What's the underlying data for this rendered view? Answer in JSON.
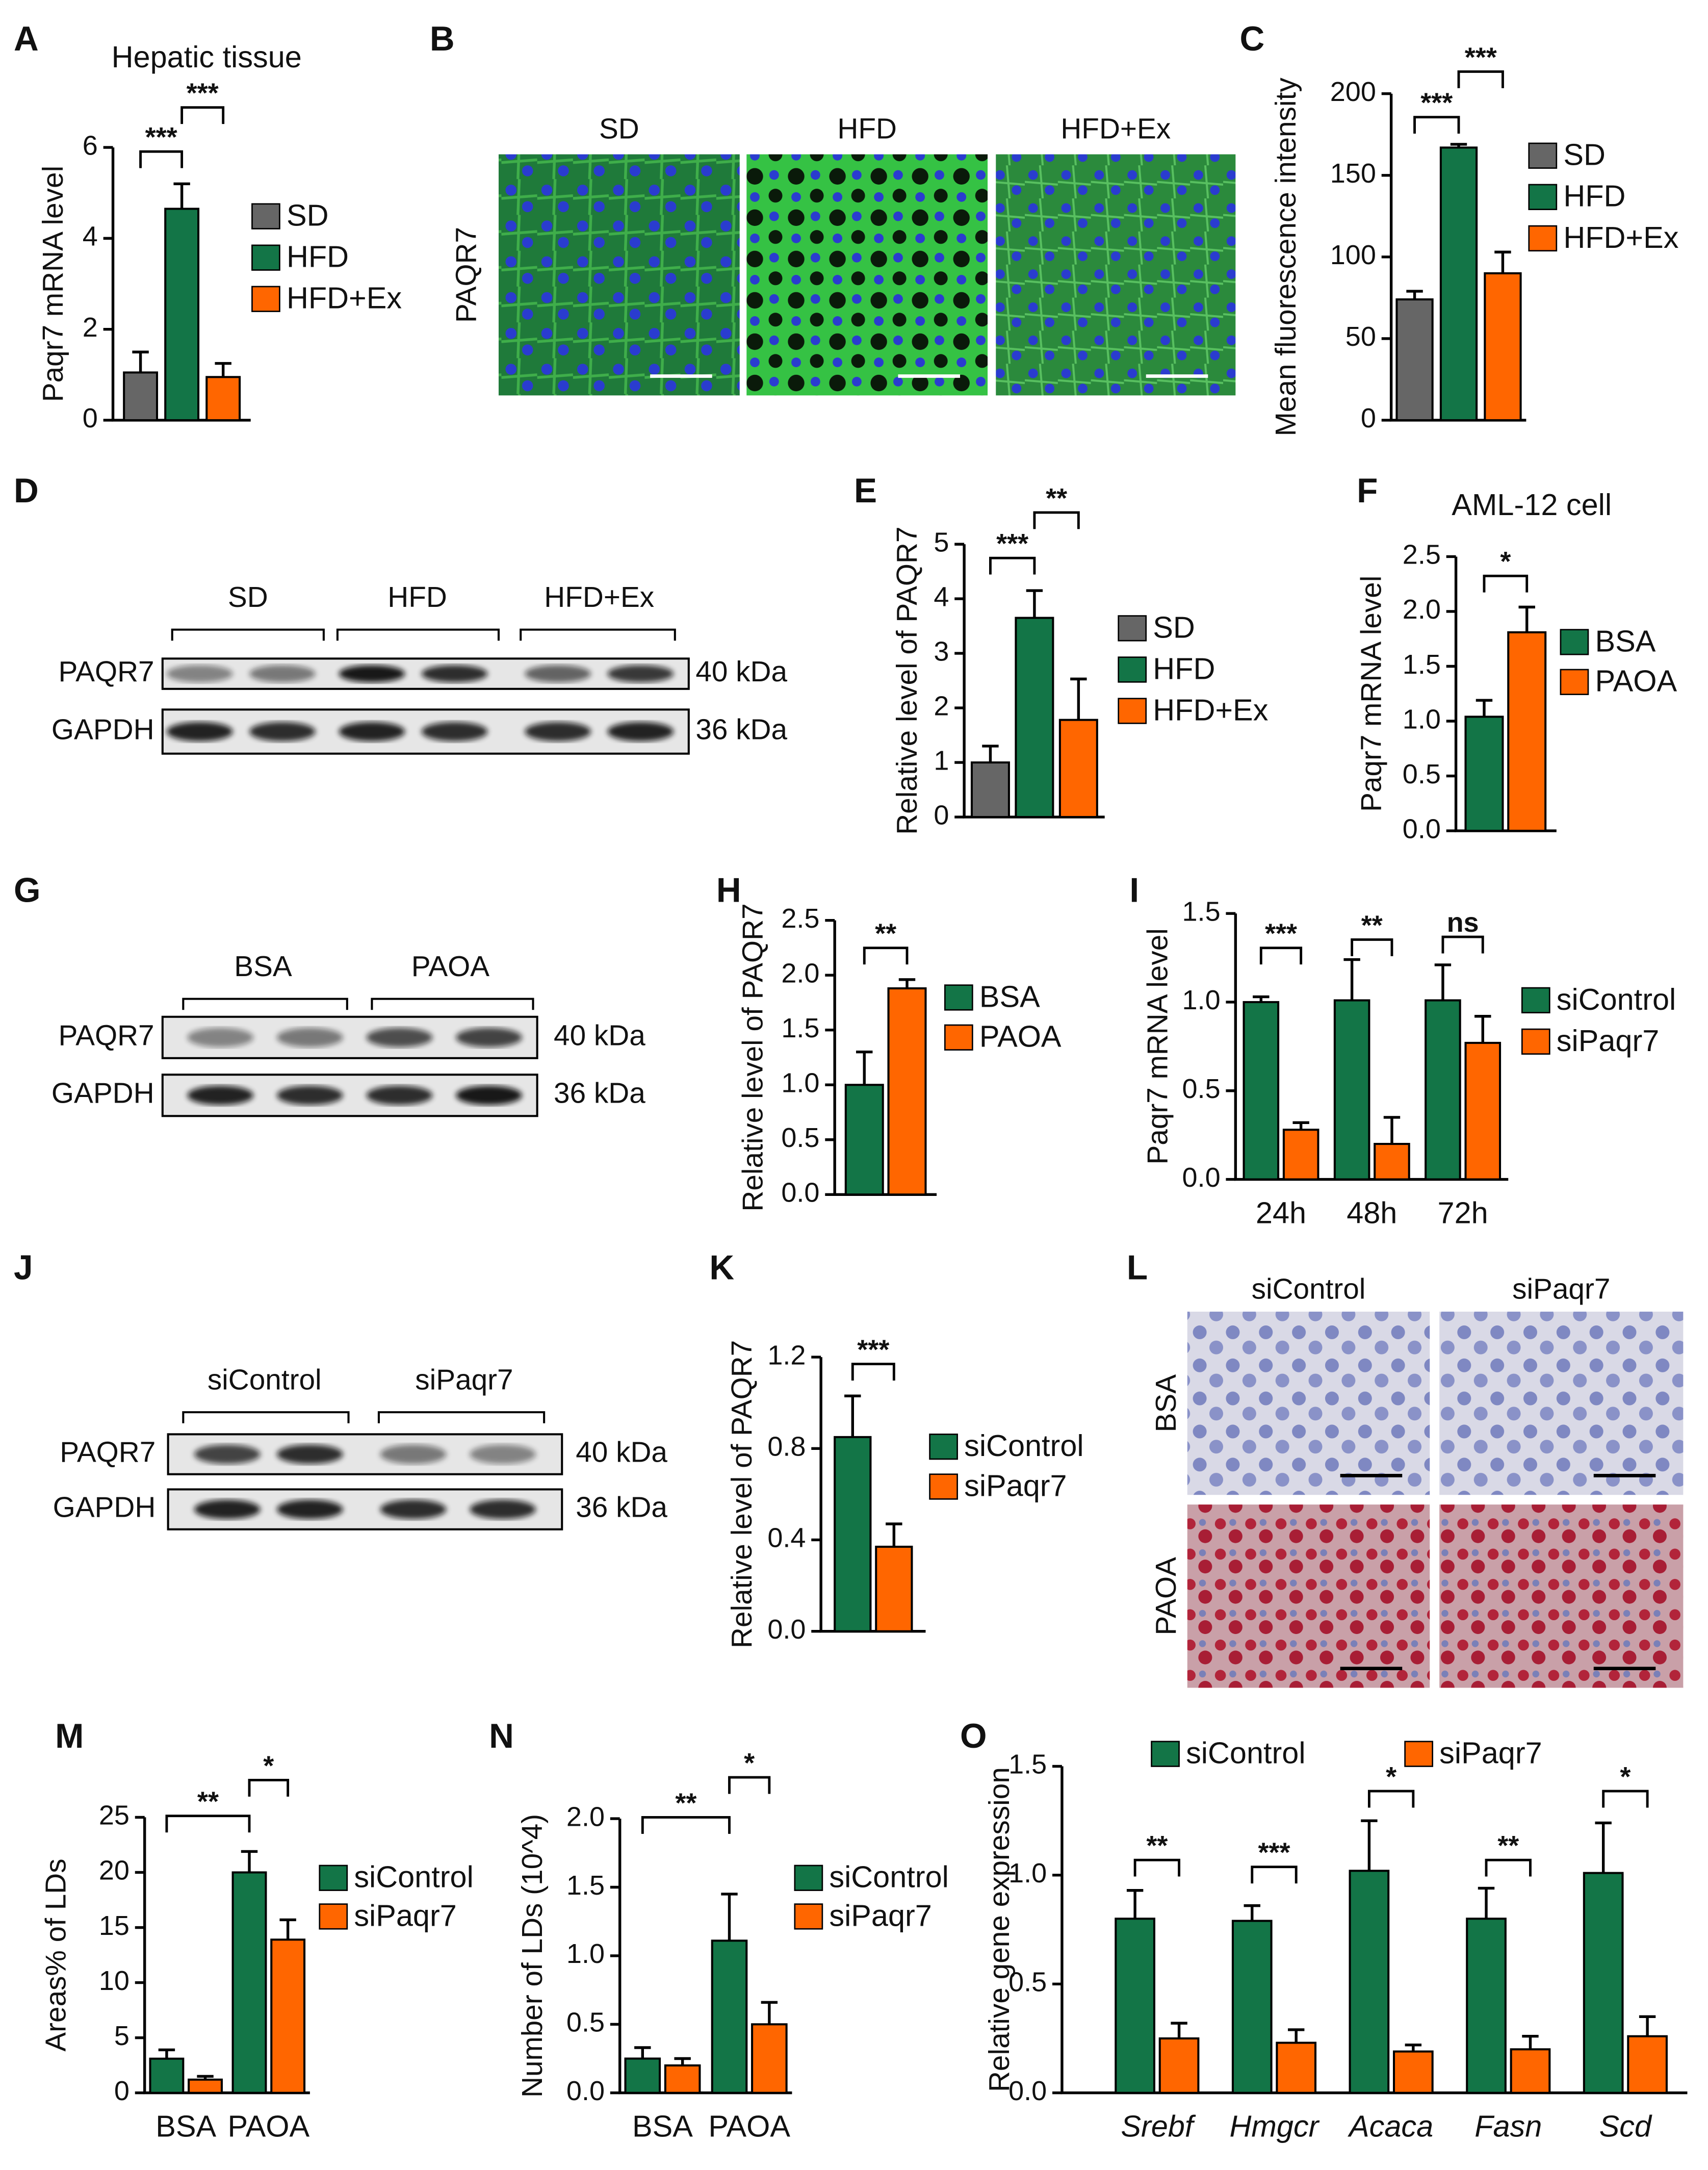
{
  "chart_data": [
    {
      "panel": "A",
      "type": "bar",
      "title": "Hepatic tissue",
      "ylabel": "Paqr7 mRNA level",
      "series": [
        {
          "name": "SD",
          "color": "#666666",
          "values": [
            1.05
          ],
          "errors": [
            0.45
          ]
        },
        {
          "name": "HFD",
          "color": "#137547",
          "values": [
            4.65
          ],
          "errors": [
            0.55
          ]
        },
        {
          "name": "HFD+Ex",
          "color": "#ff6600",
          "values": [
            0.95
          ],
          "errors": [
            0.3
          ]
        }
      ],
      "ylim": [
        0,
        6
      ],
      "yticks": [
        0,
        2,
        4,
        6
      ],
      "significance": [
        "***",
        "***"
      ]
    },
    {
      "panel": "C",
      "type": "bar",
      "ylabel": "Mean fluorescence intensity",
      "series": [
        {
          "name": "SD",
          "color": "#666666",
          "values": [
            74
          ],
          "errors": [
            5
          ]
        },
        {
          "name": "HFD",
          "color": "#137547",
          "values": [
            167
          ],
          "errors": [
            2
          ]
        },
        {
          "name": "HFD+Ex",
          "color": "#ff6600",
          "values": [
            90
          ],
          "errors": [
            13
          ]
        }
      ],
      "ylim": [
        0,
        200
      ],
      "yticks": [
        0,
        50,
        100,
        150,
        200
      ],
      "significance": [
        "***",
        "***"
      ]
    },
    {
      "panel": "E",
      "type": "bar",
      "ylabel": "Relative level of PAQR7",
      "series": [
        {
          "name": "SD",
          "color": "#666666",
          "values": [
            1.0
          ],
          "errors": [
            0.3
          ]
        },
        {
          "name": "HFD",
          "color": "#137547",
          "values": [
            3.65
          ],
          "errors": [
            0.5
          ]
        },
        {
          "name": "HFD+Ex",
          "color": "#ff6600",
          "values": [
            1.78
          ],
          "errors": [
            0.75
          ]
        }
      ],
      "ylim": [
        0,
        5
      ],
      "yticks": [
        0,
        1,
        2,
        3,
        4,
        5
      ],
      "significance": [
        "***",
        "**"
      ]
    },
    {
      "panel": "F",
      "type": "bar",
      "title": "AML-12 cell",
      "ylabel": "Paqr7 mRNA level",
      "series": [
        {
          "name": "BSA",
          "color": "#137547",
          "values": [
            1.04
          ],
          "errors": [
            0.15
          ]
        },
        {
          "name": "PAOA",
          "color": "#ff6600",
          "values": [
            1.81
          ],
          "errors": [
            0.23
          ]
        }
      ],
      "ylim": [
        0,
        2.5
      ],
      "yticks": [
        {
          "value": 0,
          "label": "0.0"
        },
        0.5,
        {
          "value": 1,
          "label": "1.0"
        },
        1.5,
        {
          "value": 2,
          "label": "2.0"
        },
        2.5
      ],
      "significance": [
        "*"
      ]
    },
    {
      "panel": "H",
      "type": "bar",
      "ylabel": "Relative level of PAQR7",
      "series": [
        {
          "name": "BSA",
          "color": "#137547",
          "values": [
            1.0
          ],
          "errors": [
            0.3
          ]
        },
        {
          "name": "PAOA",
          "color": "#ff6600",
          "values": [
            1.88
          ],
          "errors": [
            0.08
          ]
        }
      ],
      "ylim": [
        0,
        2.5
      ],
      "yticks": [
        {
          "value": 0,
          "label": "0.0"
        },
        0.5,
        {
          "value": 1,
          "label": "1.0"
        },
        1.5,
        {
          "value": 2,
          "label": "2.0"
        },
        2.5
      ],
      "significance": [
        "**"
      ]
    },
    {
      "panel": "I",
      "type": "bar",
      "ylabel": "Paqr7 mRNA level",
      "categories": [
        "24h",
        "48h",
        "72h"
      ],
      "series": [
        {
          "name": "siControl",
          "color": "#137547",
          "values": [
            1.0,
            1.01,
            1.01
          ],
          "errors": [
            0.03,
            0.23,
            0.2
          ]
        },
        {
          "name": "siPaqr7",
          "color": "#ff6600",
          "values": [
            0.28,
            0.2,
            0.77
          ],
          "errors": [
            0.04,
            0.15,
            0.15
          ]
        }
      ],
      "ylim": [
        0,
        1.5
      ],
      "yticks": [
        {
          "value": 0,
          "label": "0.0"
        },
        0.5,
        {
          "value": 1,
          "label": "1.0"
        },
        1.5
      ],
      "significance": [
        "***",
        "**",
        "ns"
      ]
    },
    {
      "panel": "K",
      "type": "bar",
      "ylabel": "Relative level of PAQR7",
      "series": [
        {
          "name": "siControl",
          "color": "#137547",
          "values": [
            0.85
          ],
          "errors": [
            0.18
          ]
        },
        {
          "name": "siPaqr7",
          "color": "#ff6600",
          "values": [
            0.37
          ],
          "errors": [
            0.1
          ]
        }
      ],
      "ylim": [
        0,
        1.2
      ],
      "yticks": [
        {
          "value": 0,
          "label": "0.0"
        },
        0.4,
        0.8,
        1.2
      ],
      "significance": [
        "***"
      ]
    },
    {
      "panel": "M",
      "type": "bar",
      "ylabel": "Areas% of LDs",
      "categories": [
        "BSA",
        "PAOA"
      ],
      "series": [
        {
          "name": "siControl",
          "color": "#137547",
          "values": [
            3.1,
            20.0
          ],
          "errors": [
            0.8,
            1.9
          ]
        },
        {
          "name": "siPaqr7",
          "color": "#ff6600",
          "values": [
            1.2,
            13.9
          ],
          "errors": [
            0.3,
            1.8
          ]
        }
      ],
      "ylim": [
        0,
        25
      ],
      "yticks": [
        0,
        5,
        10,
        15,
        20,
        25
      ],
      "significance": [
        "**",
        "*"
      ]
    },
    {
      "panel": "N",
      "type": "bar",
      "ylabel": "Number of LDs (10^4)",
      "categories": [
        "BSA",
        "PAOA"
      ],
      "series": [
        {
          "name": "siControl",
          "color": "#137547",
          "values": [
            0.25,
            1.11
          ],
          "errors": [
            0.08,
            0.34
          ]
        },
        {
          "name": "siPaqr7",
          "color": "#ff6600",
          "values": [
            0.2,
            0.5
          ],
          "errors": [
            0.05,
            0.16
          ]
        }
      ],
      "ylim": [
        0,
        2.0
      ],
      "yticks": [
        {
          "value": 0,
          "label": "0.0"
        },
        0.5,
        {
          "value": 1,
          "label": "1.0"
        },
        1.5,
        {
          "value": 2,
          "label": "2.0"
        }
      ],
      "significance": [
        "**",
        "*"
      ]
    },
    {
      "panel": "O",
      "type": "bar",
      "ylabel": "Relative gene expression",
      "categories": [
        "Srebf",
        "Hmgcr",
        "Acaca",
        "Fasn",
        "Scd"
      ],
      "series": [
        {
          "name": "siControl",
          "color": "#137547",
          "values": [
            0.8,
            0.79,
            1.02,
            0.8,
            1.01
          ],
          "errors": [
            0.13,
            0.07,
            0.23,
            0.14,
            0.23
          ]
        },
        {
          "name": "siPaqr7",
          "color": "#ff6600",
          "values": [
            0.25,
            0.23,
            0.19,
            0.2,
            0.26
          ],
          "errors": [
            0.07,
            0.06,
            0.03,
            0.06,
            0.09
          ]
        }
      ],
      "ylim": [
        0,
        1.5
      ],
      "yticks": [
        {
          "value": 0,
          "label": "0.0"
        },
        0.5,
        {
          "value": 1,
          "label": "1.0"
        },
        1.5
      ],
      "significance": [
        "**",
        "***",
        "*",
        "**",
        "*"
      ]
    }
  ],
  "blots": [
    {
      "panel": "D",
      "groups": [
        "SD",
        "HFD",
        "HFD+Ex"
      ],
      "rows": [
        {
          "protein": "PAQR7",
          "size": "40 kDa"
        },
        {
          "protein": "GAPDH",
          "size": "36 kDa"
        }
      ]
    },
    {
      "panel": "G",
      "groups": [
        "BSA",
        "PAOA"
      ],
      "rows": [
        {
          "protein": "PAQR7",
          "size": "40 kDa"
        },
        {
          "protein": "GAPDH",
          "size": "36 kDa"
        }
      ]
    },
    {
      "panel": "J",
      "groups": [
        "siControl",
        "siPaqr7"
      ],
      "rows": [
        {
          "protein": "PAQR7",
          "size": "40 kDa"
        },
        {
          "protein": "GAPDH",
          "size": "36 kDa"
        }
      ]
    }
  ],
  "micrographs": [
    {
      "panel": "B",
      "columns": [
        "SD",
        "HFD",
        "HFD+Ex"
      ],
      "rows": [
        "PAQR7"
      ]
    },
    {
      "panel": "L",
      "columns": [
        "siControl",
        "siPaqr7"
      ],
      "rows": [
        "BSA",
        "PAOA"
      ]
    }
  ]
}
